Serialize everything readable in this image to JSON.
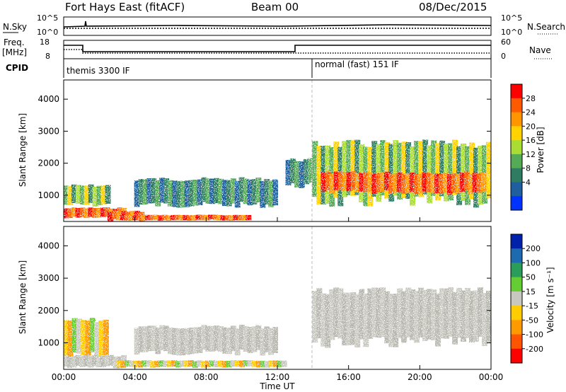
{
  "header": {
    "title": "Fort Hays East (fitACF)",
    "beam": "Beam 00",
    "date": "08/Dec/2015"
  },
  "top_panels": {
    "nsky_label": "N.Sky",
    "nsearch_label": "N.Search",
    "nsky_ticks": [
      "10^5",
      "10^0"
    ],
    "nsearch_ticks": [
      "10^5",
      "10^0"
    ],
    "freq_label": "Freq.",
    "freq_unit": "[MHz]",
    "freq_ticks": [
      "18",
      "8"
    ],
    "nave_label": "Nave",
    "nave_ticks": [
      "60",
      "0"
    ],
    "cpid_label": "CPID",
    "cpid_segments": [
      {
        "label": "themis 3300 IF",
        "start_hour": 0,
        "end_hour": 14
      },
      {
        "label": "normal (fast) 151 IF",
        "start_hour": 14,
        "end_hour": 24
      }
    ]
  },
  "power_colorbar": {
    "label": "Power [dB]",
    "ticks": [
      "28",
      "24",
      "20",
      "16",
      "12",
      "8",
      "4"
    ],
    "colors": [
      "#ff0000",
      "#ff5a00",
      "#ff9600",
      "#ffd200",
      "#aadd33",
      "#55aa55",
      "#2e7d62",
      "#1f5fa0",
      "#0033ff"
    ]
  },
  "velocity_colorbar": {
    "label": "Velocity [m s⁻¹]",
    "ticks": [
      "200",
      "100",
      "50",
      "15",
      "-15",
      "-50",
      "-100",
      "-200"
    ],
    "colors": [
      "#0022aa",
      "#1d6ab0",
      "#2a9d5a",
      "#66cc33",
      "#c8c8c0",
      "#ffcc00",
      "#ff9900",
      "#ff5500",
      "#ff0000"
    ]
  },
  "chart_data": [
    {
      "type": "heatmap",
      "panel": "power",
      "ylabel": "Slant Range [km]",
      "yticks": [
        "4000",
        "3000",
        "2000",
        "1000"
      ],
      "ylim": [
        180,
        4600
      ],
      "xlim": [
        0,
        24
      ],
      "blobs": [
        {
          "x": [
            0,
            2.6
          ],
          "y": [
            700,
            1300
          ],
          "class": "mid"
        },
        {
          "x": [
            0,
            3.5
          ],
          "y": [
            300,
            600
          ],
          "class": "strong"
        },
        {
          "x": [
            2.5,
            4.5
          ],
          "y": [
            220,
            500
          ],
          "class": "strong"
        },
        {
          "x": [
            3.2,
            10.5
          ],
          "y": [
            220,
            380
          ],
          "class": "strong"
        },
        {
          "x": [
            4,
            12
          ],
          "y": [
            700,
            1500
          ],
          "class": "weak"
        },
        {
          "x": [
            12.5,
            14
          ],
          "y": [
            1300,
            2100
          ],
          "class": "weak"
        },
        {
          "x": [
            14,
            24
          ],
          "y": [
            800,
            2600
          ],
          "class": "mid"
        },
        {
          "x": [
            14.5,
            23.7
          ],
          "y": [
            1100,
            1700
          ],
          "class": "strong"
        }
      ]
    },
    {
      "type": "heatmap",
      "panel": "velocity",
      "ylabel": "Slant Range [km]",
      "xlabel": "Time UT",
      "yticks": [
        "4000",
        "3000",
        "2000",
        "1000"
      ],
      "xticks": [
        "00:00",
        "04:00",
        "08:00",
        "12:00",
        "16:00",
        "20:00",
        "00:00"
      ],
      "ylim": [
        180,
        4600
      ],
      "xlim": [
        0,
        24
      ],
      "blobs": [
        {
          "x": [
            0,
            2.5
          ],
          "y": [
            600,
            1700
          ],
          "class": "neg"
        },
        {
          "x": [
            0,
            3.5
          ],
          "y": [
            250,
            600
          ],
          "class": "ground"
        },
        {
          "x": [
            3,
            12.5
          ],
          "y": [
            250,
            450
          ],
          "class": "neg"
        },
        {
          "x": [
            4,
            12
          ],
          "y": [
            700,
            1500
          ],
          "class": "ground"
        },
        {
          "x": [
            14,
            24
          ],
          "y": [
            1000,
            2600
          ],
          "class": "ground"
        }
      ]
    }
  ]
}
